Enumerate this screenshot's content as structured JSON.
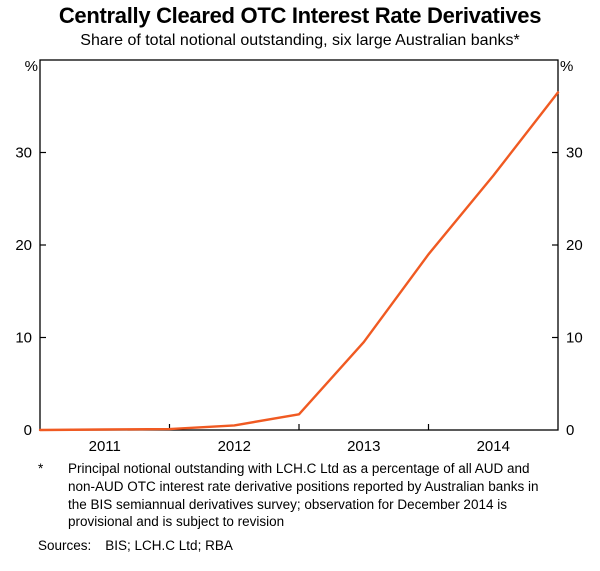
{
  "title": "Centrally Cleared OTC Interest Rate Derivatives",
  "subtitle": "Share of total notional outstanding, six large Australian banks*",
  "chart_data": {
    "type": "line",
    "title": "Centrally Cleared OTC Interest Rate Derivatives",
    "subtitle": "Share of total notional outstanding, six large Australian banks*",
    "unit_left": "%",
    "unit_right": "%",
    "x": [
      "Dec 2010",
      "Jun 2011",
      "Dec 2011",
      "Jun 2012",
      "Dec 2012",
      "Jun 2013",
      "Dec 2013",
      "Jun 2014",
      "Dec 2014"
    ],
    "values": [
      0.0,
      0.05,
      0.1,
      0.5,
      1.7,
      9.5,
      19.0,
      27.5,
      36.5
    ],
    "series_name": "Share of total notional outstanding centrally cleared",
    "line_color": "#f05a22",
    "ylim": [
      0,
      40
    ],
    "yticks": [
      0,
      10,
      20,
      30
    ],
    "x_year_labels": [
      "2011",
      "2012",
      "2013",
      "2014"
    ],
    "grid": false,
    "legend": "none"
  },
  "footnote": {
    "marker": "*",
    "text": "Principal notional outstanding with LCH.C Ltd as a percentage of all AUD and non-AUD OTC interest rate derivative positions reported by Australian banks in the BIS semiannual derivatives survey; observation for December 2014 is provisional and is subject to revision"
  },
  "sources": {
    "label": "Sources:",
    "text": "BIS; LCH.C Ltd; RBA"
  }
}
